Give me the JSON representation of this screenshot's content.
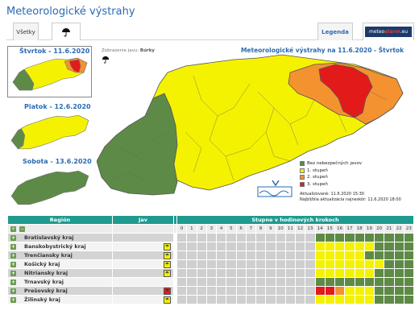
{
  "page_title": "Meteorologické výstrahy",
  "tabs": {
    "all": "Všetky",
    "storm_icon": "umbrella-icon",
    "legend": "Legenda",
    "meteoalarm_a": "meteo",
    "meteoalarm_b": "alarm",
    "meteoalarm_c": ".eu"
  },
  "thumbnails": [
    {
      "label": "Štvrtok - 11.6.2020",
      "selected": true
    },
    {
      "label": "Piatok - 12.6.2020",
      "selected": false
    },
    {
      "label": "Sobota - 13.6.2020",
      "selected": false
    }
  ],
  "display": {
    "label": "Zobrazenie javu:",
    "value": "Búrky"
  },
  "map_title": "Meteorologické výstrahy na 11.6.2020 - Štvrtok",
  "legend": [
    {
      "label": "Bez nebezpečných javov",
      "color": "#5e8a47"
    },
    {
      "label": "1. stupeň",
      "color": "#f4f200"
    },
    {
      "label": "2. stupeň",
      "color": "#f3922f"
    },
    {
      "label": "3. stupeň",
      "color": "#e31a1a"
    }
  ],
  "updates": {
    "current_label": "Aktualizované:",
    "current_value": "11.6.2020 15:30",
    "next_label": "Najbližšia aktualizácia najneskôr:",
    "next_value": "11.6.2020 18:00"
  },
  "grid": {
    "col_region": "Región",
    "col_phenomenon": "Jav",
    "col_steps": "Stupne v hodinových krokoch",
    "hours": [
      "0",
      "1",
      "2",
      "3",
      "4",
      "5",
      "6",
      "7",
      "8",
      "9",
      "10",
      "11",
      "12",
      "13",
      "14",
      "15",
      "16",
      "17",
      "18",
      "19",
      "20",
      "21",
      "22",
      "23"
    ],
    "regions": [
      {
        "name": "Bratislavský kraj",
        "level": 0,
        "cells": [
          0,
          0,
          0,
          0,
          0,
          0,
          0,
          0,
          0,
          0,
          0,
          0,
          0,
          0,
          1,
          1,
          1,
          1,
          1,
          1,
          1,
          1,
          1,
          1
        ]
      },
      {
        "name": "Banskobystrický kraj",
        "level": 1,
        "cells": [
          0,
          0,
          0,
          0,
          0,
          0,
          0,
          0,
          0,
          0,
          0,
          0,
          0,
          0,
          2,
          2,
          2,
          2,
          2,
          2,
          1,
          1,
          1,
          1
        ]
      },
      {
        "name": "Trenčiansky kraj",
        "level": 1,
        "cells": [
          0,
          0,
          0,
          0,
          0,
          0,
          0,
          0,
          0,
          0,
          0,
          0,
          0,
          0,
          2,
          2,
          2,
          2,
          2,
          1,
          1,
          1,
          1,
          1
        ]
      },
      {
        "name": "Košický kraj",
        "level": 1,
        "cells": [
          0,
          0,
          0,
          0,
          0,
          0,
          0,
          0,
          0,
          0,
          0,
          0,
          0,
          0,
          2,
          2,
          2,
          2,
          2,
          2,
          2,
          1,
          1,
          1
        ]
      },
      {
        "name": "Nitriansky kraj",
        "level": 1,
        "cells": [
          0,
          0,
          0,
          0,
          0,
          0,
          0,
          0,
          0,
          0,
          0,
          0,
          0,
          0,
          2,
          2,
          2,
          2,
          2,
          2,
          1,
          1,
          1,
          1
        ]
      },
      {
        "name": "Trnavský kraj",
        "level": 0,
        "cells": [
          0,
          0,
          0,
          0,
          0,
          0,
          0,
          0,
          0,
          0,
          0,
          0,
          0,
          0,
          1,
          1,
          1,
          1,
          1,
          1,
          1,
          1,
          1,
          1
        ]
      },
      {
        "name": "Prešovský kraj",
        "level": 3,
        "cells": [
          0,
          0,
          0,
          0,
          0,
          0,
          0,
          0,
          0,
          0,
          0,
          0,
          0,
          0,
          4,
          4,
          3,
          2,
          2,
          2,
          1,
          1,
          1,
          1
        ]
      },
      {
        "name": "Žilinský kraj",
        "level": 1,
        "cells": [
          0,
          0,
          0,
          0,
          0,
          0,
          0,
          0,
          0,
          0,
          0,
          0,
          0,
          0,
          2,
          2,
          2,
          2,
          2,
          2,
          1,
          1,
          1,
          1
        ]
      }
    ]
  }
}
